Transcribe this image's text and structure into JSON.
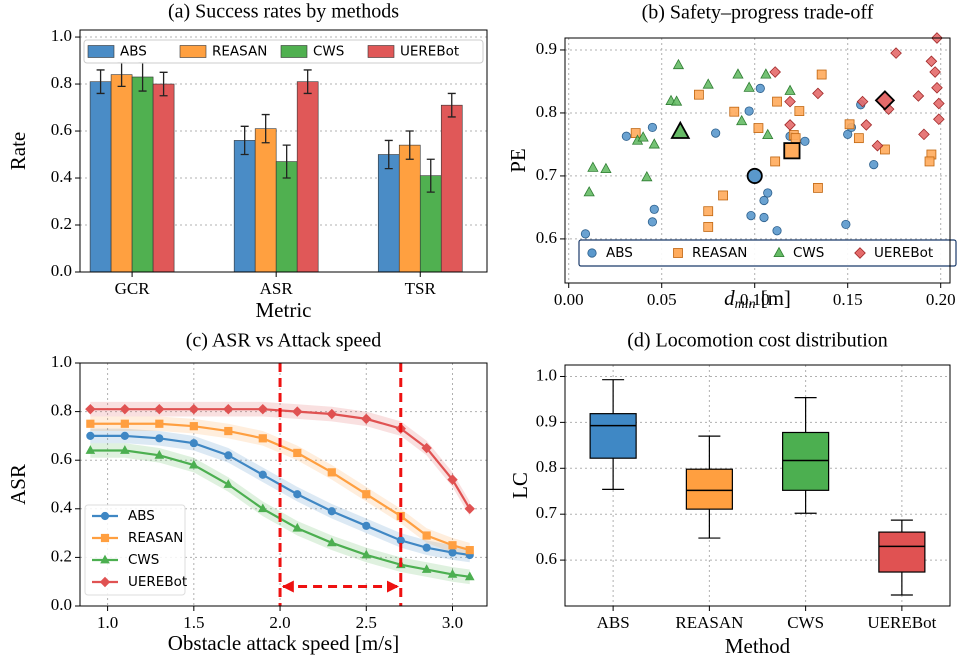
{
  "chart_data": [
    {
      "type": "bar",
      "title": "(a) Success rates by methods",
      "x_label": "Metric",
      "y_label": "Rate",
      "categories": [
        "GCR",
        "ASR",
        "TSR"
      ],
      "series": [
        {
          "name": "ABS",
          "color": "#4a8cc6",
          "values": [
            0.81,
            0.56,
            0.5
          ],
          "errors": [
            0.05,
            0.06,
            0.06
          ]
        },
        {
          "name": "REASAN",
          "color": "#ffa040",
          "values": [
            0.84,
            0.61,
            0.54
          ],
          "errors": [
            0.05,
            0.06,
            0.06
          ]
        },
        {
          "name": "CWS",
          "color": "#50b050",
          "values": [
            0.83,
            0.47,
            0.41
          ],
          "errors": [
            0.06,
            0.07,
            0.07
          ]
        },
        {
          "name": "UEREBot",
          "color": "#e05858",
          "values": [
            0.8,
            0.81,
            0.71
          ],
          "errors": [
            0.05,
            0.05,
            0.05
          ]
        }
      ],
      "ylim": [
        0,
        1.03
      ],
      "yticks": [
        {
          "value": 0,
          "label": "0.0"
        },
        0.2,
        0.4,
        0.6,
        0.8,
        {
          "value": 1,
          "label": "1.0"
        }
      ],
      "grid": "y",
      "legend": "upper left"
    },
    {
      "type": "scatter",
      "title": "(b) Safety–progress trade-off",
      "x_label": {
        "symbol": "d",
        "subscript": "min",
        "unit": "[m]"
      },
      "y_label": "PE",
      "series": [
        {
          "name": "ABS",
          "marker": "o",
          "color": "#5a98cc",
          "edgecolor": "#2c5f8c",
          "x": [
            0.009,
            0.045,
            0.046,
            0.045,
            0.031,
            0.079,
            0.097,
            0.103,
            0.098,
            0.105,
            0.107,
            0.112,
            0.127,
            0.15,
            0.149,
            0.152,
            0.157,
            0.164,
            0.119,
            0.105
          ],
          "y": [
            0.608,
            0.777,
            0.647,
            0.627,
            0.763,
            0.768,
            0.803,
            0.839,
            0.637,
            0.634,
            0.673,
            0.613,
            0.755,
            0.766,
            0.623,
            0.777,
            0.813,
            0.718,
            0.763,
            0.661
          ],
          "mean_x": 0.1,
          "mean_y": 0.7
        },
        {
          "name": "REASAN",
          "marker": "s",
          "color": "#ffab5c",
          "edgecolor": "#c0650f",
          "x": [
            0.036,
            0.07,
            0.075,
            0.075,
            0.083,
            0.089,
            0.102,
            0.112,
            0.111,
            0.121,
            0.122,
            0.134,
            0.136,
            0.124,
            0.156,
            0.151,
            0.17,
            0.195,
            0.194
          ],
          "y": [
            0.768,
            0.829,
            0.644,
            0.619,
            0.669,
            0.802,
            0.776,
            0.818,
            0.723,
            0.765,
            0.76,
            0.681,
            0.861,
            0.803,
            0.76,
            0.782,
            0.742,
            0.734,
            0.723
          ],
          "mean_x": 0.12,
          "mean_y": 0.74
        },
        {
          "name": "CWS",
          "marker": "^",
          "color": "#66bb66",
          "edgecolor": "#2e7d32",
          "x": [
            0.011,
            0.013,
            0.02,
            0.037,
            0.04,
            0.042,
            0.046,
            0.055,
            0.058,
            0.059,
            0.075,
            0.091,
            0.093,
            0.097,
            0.106,
            0.107,
            0.119
          ],
          "y": [
            0.674,
            0.713,
            0.711,
            0.756,
            0.761,
            0.698,
            0.75,
            0.819,
            0.818,
            0.876,
            0.845,
            0.861,
            0.787,
            0.84,
            0.861,
            0.765,
            0.835
          ],
          "mean_x": 0.06,
          "mean_y": 0.77
        },
        {
          "name": "UEREBot",
          "marker": "D",
          "color": "#e46a6a",
          "edgecolor": "#a02828",
          "x": [
            0.111,
            0.119,
            0.134,
            0.119,
            0.158,
            0.16,
            0.166,
            0.172,
            0.176,
            0.188,
            0.191,
            0.195,
            0.197,
            0.198,
            0.199,
            0.199,
            0.198
          ],
          "y": [
            0.865,
            0.818,
            0.831,
            0.781,
            0.818,
            0.781,
            0.748,
            0.806,
            0.895,
            0.827,
            0.766,
            0.882,
            0.865,
            0.84,
            0.815,
            0.79,
            0.919
          ],
          "mean_x": 0.17,
          "mean_y": 0.82
        }
      ],
      "xlim": [
        -0.002,
        0.205
      ],
      "xticks": [
        {
          "value": 0,
          "label": "0.00"
        },
        0.05,
        {
          "value": 0.1,
          "label": "0.10"
        },
        0.15,
        {
          "value": 0.2,
          "label": "0.20"
        }
      ],
      "ylim": [
        0.53,
        0.919
      ],
      "yticks": [
        0.6,
        0.7,
        0.8,
        0.9
      ],
      "grid": "both",
      "legend": "lower center"
    },
    {
      "type": "line",
      "title": "(c) ASR vs Attack speed",
      "x_label": "Obstacle attack speed [m/s]",
      "y_label": "ASR",
      "x": [
        0.9,
        1.1,
        1.3,
        1.5,
        1.7,
        1.9,
        2.1,
        2.3,
        2.5,
        2.7,
        2.85,
        3.0,
        3.1
      ],
      "series": [
        {
          "name": "ABS",
          "marker": "o",
          "color": "#3f87c4",
          "band_halfwidth": 0.03,
          "values": [
            0.7,
            0.7,
            0.69,
            0.67,
            0.62,
            0.54,
            0.46,
            0.39,
            0.33,
            0.27,
            0.24,
            0.22,
            0.21
          ]
        },
        {
          "name": "REASAN",
          "marker": "s",
          "color": "#ff9f40",
          "band_halfwidth": 0.03,
          "values": [
            0.75,
            0.75,
            0.75,
            0.74,
            0.72,
            0.69,
            0.63,
            0.55,
            0.46,
            0.37,
            0.29,
            0.25,
            0.23
          ]
        },
        {
          "name": "CWS",
          "marker": "^",
          "color": "#4caf50",
          "band_halfwidth": 0.03,
          "values": [
            0.64,
            0.64,
            0.62,
            0.58,
            0.5,
            0.4,
            0.32,
            0.26,
            0.21,
            0.17,
            0.15,
            0.13,
            0.12
          ]
        },
        {
          "name": "UEREBot",
          "marker": "D",
          "color": "#e05252",
          "band_halfwidth": 0.03,
          "values": [
            0.81,
            0.81,
            0.81,
            0.81,
            0.81,
            0.81,
            0.8,
            0.79,
            0.77,
            0.73,
            0.65,
            0.52,
            0.4
          ]
        }
      ],
      "xlim": [
        0.84,
        3.2
      ],
      "xticks": [
        {
          "value": 1,
          "label": "1.0"
        },
        1.5,
        {
          "value": 2,
          "label": "2.0"
        },
        2.5,
        {
          "value": 3,
          "label": "3.0"
        }
      ],
      "ylim": [
        0,
        1
      ],
      "yticks": [
        {
          "value": 0,
          "label": "0.0"
        },
        0.2,
        0.4,
        0.6,
        0.8,
        {
          "value": 1,
          "label": "1.0"
        }
      ],
      "grid": "both",
      "legend": "lower left",
      "highlight_range": [
        2.0,
        2.7
      ],
      "highlight_color": "#ee1111",
      "arrow_y": 0.08
    },
    {
      "type": "box",
      "title": "(d) Locomotion cost distribution",
      "x_label": "Method",
      "y_label": "LC",
      "categories": [
        "ABS",
        "REASAN",
        "CWS",
        "UEREBot"
      ],
      "colors": [
        "#3f88c5",
        "#ff9f40",
        "#4caf50",
        "#e05252"
      ],
      "whisker_low": [
        0.754,
        0.648,
        0.702,
        0.524
      ],
      "q1": [
        0.822,
        0.711,
        0.752,
        0.574
      ],
      "median": [
        0.893,
        0.752,
        0.817,
        0.63
      ],
      "q3": [
        0.919,
        0.798,
        0.878,
        0.661
      ],
      "whisker_high": [
        0.993,
        0.87,
        0.954,
        0.687
      ],
      "ylim": [
        0.5,
        1.025
      ],
      "yticks": [
        0.6,
        0.7,
        0.8,
        0.9,
        {
          "value": 1,
          "label": "1.0"
        }
      ],
      "grid": "both"
    }
  ]
}
